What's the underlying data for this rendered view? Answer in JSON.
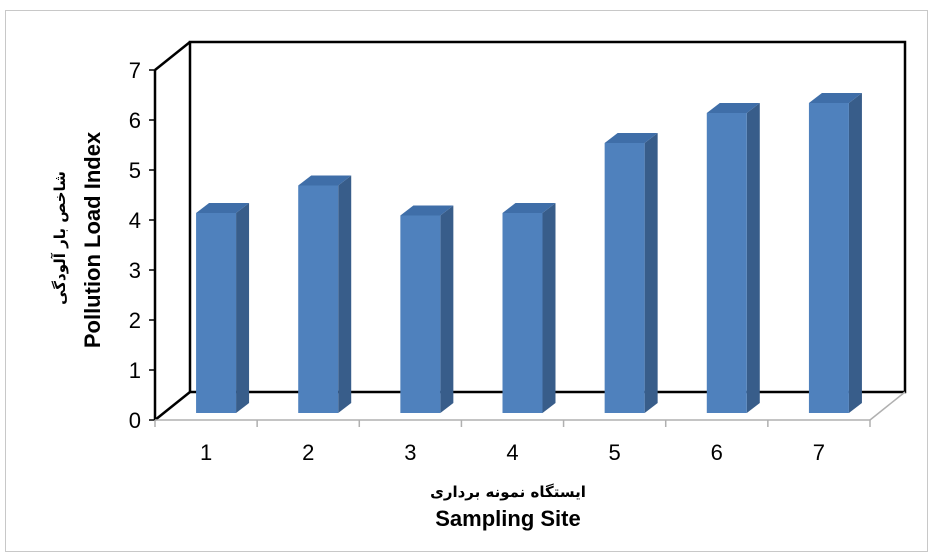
{
  "chart_data": {
    "type": "bar",
    "categories": [
      "1",
      "2",
      "3",
      "4",
      "5",
      "6",
      "7"
    ],
    "values": [
      4.0,
      4.55,
      3.95,
      4.0,
      5.4,
      6.0,
      6.2
    ],
    "ylim": [
      0,
      7
    ],
    "yticks": [
      "0",
      "1",
      "2",
      "3",
      "4",
      "5",
      "6",
      "7"
    ],
    "xlabel": "Sampling Site",
    "xlabel_fa": "ایستگاه نمونه برداری",
    "ylabel": "Pollution Load Index",
    "ylabel_fa": "شاخص بار آلودگی",
    "grid": false,
    "legend": "none",
    "style": "3d-column",
    "colors": {
      "bar_front": "#4F81BD",
      "bar_side": "#385D8A",
      "bar_top": "#3F6EA8"
    }
  }
}
